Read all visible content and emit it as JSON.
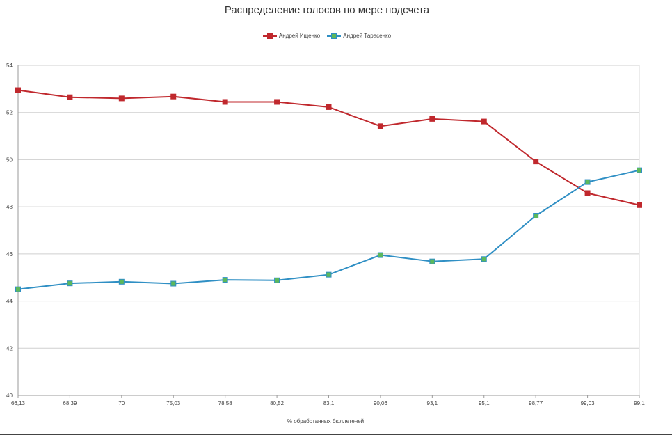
{
  "chart_data": {
    "type": "line",
    "title": "Распределение голосов по мере подсчета",
    "xlabel": "% обработанных бюллетеней",
    "ylabel": "",
    "ylim": [
      40,
      54
    ],
    "yticks": [
      "40",
      "42",
      "44",
      "46",
      "48",
      "50",
      "52",
      "54"
    ],
    "categories": [
      "66,13",
      "68,39",
      "70",
      "75,03",
      "78,58",
      "80,52",
      "83,1",
      "90,06",
      "93,1",
      "95,1",
      "98,77",
      "99,03",
      "99,1"
    ],
    "grid": true,
    "legend_position": "top",
    "series": [
      {
        "name": "Андрей Ищенко",
        "color": "#c0282d",
        "marker_color": "#c0282d",
        "marker": "square",
        "values": [
          52.95,
          52.65,
          52.6,
          52.68,
          52.45,
          52.45,
          52.23,
          51.42,
          51.73,
          51.62,
          49.92,
          48.58,
          48.07
        ]
      },
      {
        "name": "Андрей Тарасенко",
        "color": "#2f8fc4",
        "marker_color": "#5cb85c",
        "marker": "square",
        "values": [
          44.5,
          44.75,
          44.82,
          44.74,
          44.9,
          44.88,
          45.12,
          45.95,
          45.68,
          45.78,
          47.62,
          49.05,
          49.55
        ]
      }
    ]
  }
}
